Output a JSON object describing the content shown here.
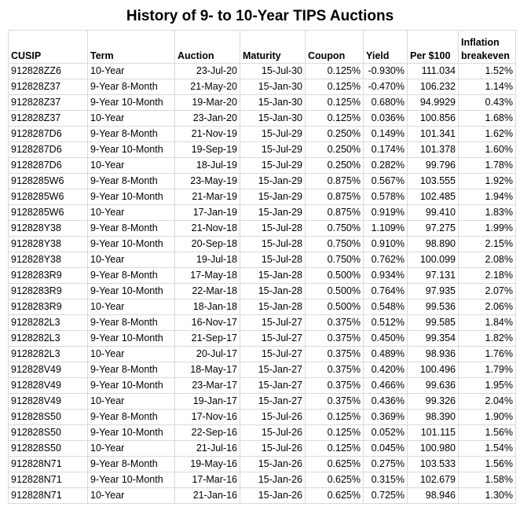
{
  "title": "History of 9- to 10-Year TIPS Auctions",
  "table": {
    "columns": [
      "CUSIP",
      "Term",
      "Auction",
      "Maturity",
      "Coupon",
      "Yield",
      "Per $100",
      "Inflation breakeven"
    ],
    "rows": [
      [
        "912828ZZ6",
        "10-Year",
        "23-Jul-20",
        "15-Jul-30",
        "0.125%",
        "-0.930%",
        "111.034",
        "1.52%"
      ],
      [
        "912828Z37",
        "9-Year 8-Month",
        "21-May-20",
        "15-Jan-30",
        "0.125%",
        "-0.470%",
        "106.232",
        "1.14%"
      ],
      [
        "912828Z37",
        "9-Year 10-Month",
        "19-Mar-20",
        "15-Jan-30",
        "0.125%",
        "0.680%",
        "94.9929",
        "0.43%"
      ],
      [
        "912828Z37",
        "10-Year",
        "23-Jan-20",
        "15-Jan-30",
        "0.125%",
        "0.036%",
        "100.856",
        "1.68%"
      ],
      [
        "9128287D6",
        "9-Year 8-Month",
        "21-Nov-19",
        "15-Jul-29",
        "0.250%",
        "0.149%",
        "101.341",
        "1.62%"
      ],
      [
        "9128287D6",
        "9-Year 10-Month",
        "19-Sep-19",
        "15-Jul-29",
        "0.250%",
        "0.174%",
        "101.378",
        "1.60%"
      ],
      [
        "9128287D6",
        "10-Year",
        "18-Jul-19",
        "15-Jul-29",
        "0.250%",
        "0.282%",
        "99.796",
        "1.78%"
      ],
      [
        "9128285W6",
        "9-Year 8-Month",
        "23-May-19",
        "15-Jan-29",
        "0.875%",
        "0.567%",
        "103.555",
        "1.92%"
      ],
      [
        "9128285W6",
        "9-Year 10-Month",
        "21-Mar-19",
        "15-Jan-29",
        "0.875%",
        "0.578%",
        "102.485",
        "1.94%"
      ],
      [
        "9128285W6",
        "10-Year",
        "17-Jan-19",
        "15-Jan-29",
        "0.875%",
        "0.919%",
        "99.410",
        "1.83%"
      ],
      [
        "912828Y38",
        "9-Year 8-Month",
        "21-Nov-18",
        "15-Jul-28",
        "0.750%",
        "1.109%",
        "97.275",
        "1.99%"
      ],
      [
        "912828Y38",
        "9-Year 10-Month",
        "20-Sep-18",
        "15-Jul-28",
        "0.750%",
        "0.910%",
        "98.890",
        "2.15%"
      ],
      [
        "912828Y38",
        "10-Year",
        "19-Jul-18",
        "15-Jul-28",
        "0.750%",
        "0.762%",
        "100.099",
        "2.08%"
      ],
      [
        "9128283R9",
        "9-Year 8-Month",
        "17-May-18",
        "15-Jan-28",
        "0.500%",
        "0.934%",
        "97.131",
        "2.18%"
      ],
      [
        "9128283R9",
        "9-Year 10-Month",
        "22-Mar-18",
        "15-Jan-28",
        "0.500%",
        "0.764%",
        "97.935",
        "2.07%"
      ],
      [
        "9128283R9",
        "10-Year",
        "18-Jan-18",
        "15-Jan-28",
        "0.500%",
        "0.548%",
        "99.536",
        "2.06%"
      ],
      [
        "9128282L3",
        "9-Year 8-Month",
        "16-Nov-17",
        "15-Jul-27",
        "0.375%",
        "0.512%",
        "99.585",
        "1.84%"
      ],
      [
        "9128282L3",
        "9-Year 10-Month",
        "21-Sep-17",
        "15-Jul-27",
        "0.375%",
        "0.450%",
        "99.354",
        "1.82%"
      ],
      [
        "9128282L3",
        "10-Year",
        "20-Jul-17",
        "15-Jul-27",
        "0.375%",
        "0.489%",
        "98.936",
        "1.76%"
      ],
      [
        "912828V49",
        "9-Year 8-Month",
        "18-May-17",
        "15-Jan-27",
        "0.375%",
        "0.420%",
        "100.496",
        "1.79%"
      ],
      [
        "912828V49",
        "9-Year 10-Month",
        "23-Mar-17",
        "15-Jan-27",
        "0.375%",
        "0.466%",
        "99.636",
        "1.95%"
      ],
      [
        "912828V49",
        "10-Year",
        "19-Jan-17",
        "15-Jan-27",
        "0.375%",
        "0.436%",
        "99.326",
        "2.04%"
      ],
      [
        "912828S50",
        "9-Year 8-Month",
        "17-Nov-16",
        "15-Jul-26",
        "0.125%",
        "0.369%",
        "98.390",
        "1.90%"
      ],
      [
        "912828S50",
        "9-Year 10-Month",
        "22-Sep-16",
        "15-Jul-26",
        "0.125%",
        "0.052%",
        "101.115",
        "1.56%"
      ],
      [
        "912828S50",
        "10-Year",
        "21-Jul-16",
        "15-Jul-26",
        "0.125%",
        "0.045%",
        "100.980",
        "1.54%"
      ],
      [
        "912828N71",
        "9-Year 8-Month",
        "19-May-16",
        "15-Jan-26",
        "0.625%",
        "0.275%",
        "103.533",
        "1.56%"
      ],
      [
        "912828N71",
        "9-Year 10-Month",
        "17-Mar-16",
        "15-Jan-26",
        "0.625%",
        "0.315%",
        "102.679",
        "1.58%"
      ],
      [
        "912828N71",
        "10-Year",
        "21-Jan-16",
        "15-Jan-26",
        "0.625%",
        "0.725%",
        "98.946",
        "1.30%"
      ]
    ]
  }
}
